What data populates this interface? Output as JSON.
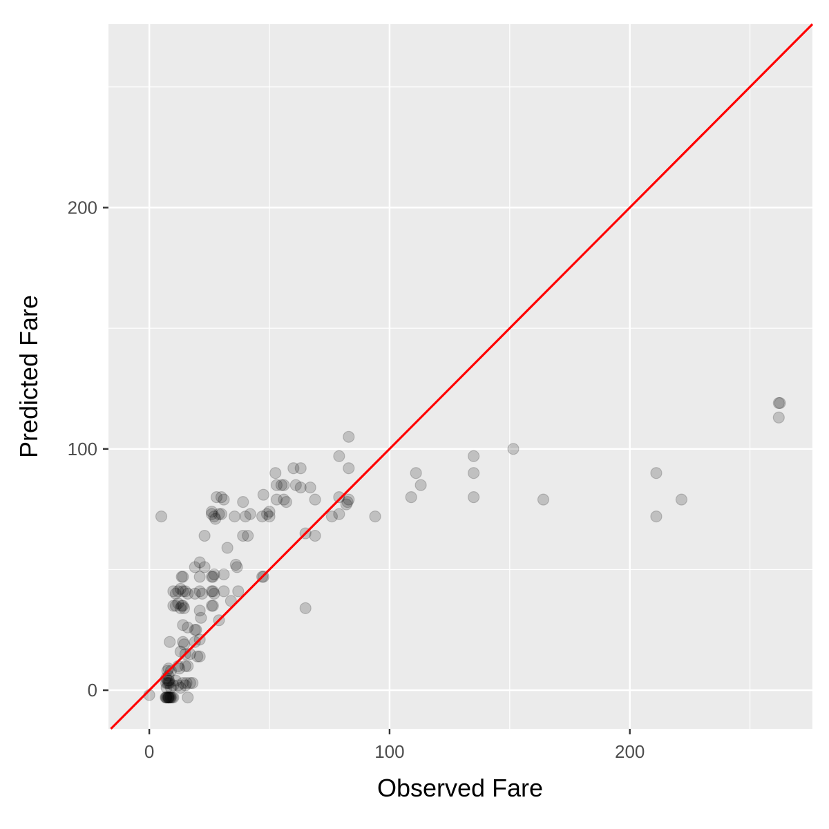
{
  "chart_data": {
    "type": "scatter",
    "title": "",
    "xlabel": "Observed Fare",
    "ylabel": "Predicted Fare",
    "xlim": [
      -17,
      276
    ],
    "ylim": [
      -16,
      276
    ],
    "x_ticks": [
      0,
      100,
      200
    ],
    "y_ticks": [
      0,
      100,
      200
    ],
    "x_minor": [
      50,
      150,
      250
    ],
    "y_minor": [
      50,
      150,
      250
    ],
    "grid": true,
    "colors": {
      "panel": "#ebebeb",
      "grid": "#ffffff",
      "points": "#000000",
      "reference_line": "#ff0000",
      "tick_text": "#4d4d4d"
    },
    "point_alpha": 0.18,
    "reference_line": {
      "slope": 1,
      "intercept": 0
    },
    "points": [
      {
        "x": 0,
        "y": -2
      },
      {
        "x": 5,
        "y": 72
      },
      {
        "x": 7,
        "y": -3
      },
      {
        "x": 7.5,
        "y": -3
      },
      {
        "x": 8,
        "y": -3
      },
      {
        "x": 8,
        "y": -3
      },
      {
        "x": 8.5,
        "y": -3
      },
      {
        "x": 9,
        "y": -3
      },
      {
        "x": 7.8,
        "y": -3
      },
      {
        "x": 8.2,
        "y": -3
      },
      {
        "x": 7.2,
        "y": -3
      },
      {
        "x": 8.8,
        "y": -3
      },
      {
        "x": 9.5,
        "y": -3
      },
      {
        "x": 6.8,
        "y": -3
      },
      {
        "x": 10,
        "y": -3
      },
      {
        "x": 7,
        "y": 3
      },
      {
        "x": 7.5,
        "y": 3
      },
      {
        "x": 8,
        "y": 3
      },
      {
        "x": 8.5,
        "y": 3
      },
      {
        "x": 7.8,
        "y": 4
      },
      {
        "x": 8.2,
        "y": 4
      },
      {
        "x": 7,
        "y": 5
      },
      {
        "x": 8,
        "y": 6
      },
      {
        "x": 7.5,
        "y": 8
      },
      {
        "x": 8,
        "y": 9
      },
      {
        "x": 9,
        "y": 8
      },
      {
        "x": 7.2,
        "y": 1
      },
      {
        "x": 9,
        "y": 1
      },
      {
        "x": 10,
        "y": 2
      },
      {
        "x": 11,
        "y": 4
      },
      {
        "x": 12,
        "y": 2
      },
      {
        "x": 12.5,
        "y": 9
      },
      {
        "x": 13,
        "y": 1
      },
      {
        "x": 14,
        "y": 3
      },
      {
        "x": 15,
        "y": 2
      },
      {
        "x": 15.5,
        "y": 3
      },
      {
        "x": 16,
        "y": -3
      },
      {
        "x": 17,
        "y": 3
      },
      {
        "x": 18,
        "y": 3
      },
      {
        "x": 8.5,
        "y": 20
      },
      {
        "x": 13,
        "y": 16
      },
      {
        "x": 14,
        "y": 20
      },
      {
        "x": 14.5,
        "y": 19
      },
      {
        "x": 15,
        "y": 10
      },
      {
        "x": 16,
        "y": 10
      },
      {
        "x": 15,
        "y": 15
      },
      {
        "x": 17,
        "y": 15
      },
      {
        "x": 16,
        "y": 26
      },
      {
        "x": 14,
        "y": 27
      },
      {
        "x": 12,
        "y": 10
      },
      {
        "x": 19,
        "y": 25
      },
      {
        "x": 19.5,
        "y": 25
      },
      {
        "x": 20,
        "y": 14
      },
      {
        "x": 21,
        "y": 14
      },
      {
        "x": 19,
        "y": 20
      },
      {
        "x": 21,
        "y": 21
      },
      {
        "x": 10,
        "y": 35
      },
      {
        "x": 11,
        "y": 35
      },
      {
        "x": 12,
        "y": 36
      },
      {
        "x": 13,
        "y": 34
      },
      {
        "x": 13.5,
        "y": 35
      },
      {
        "x": 14,
        "y": 35
      },
      {
        "x": 14.5,
        "y": 34
      },
      {
        "x": 10,
        "y": 41
      },
      {
        "x": 11,
        "y": 40
      },
      {
        "x": 12,
        "y": 41
      },
      {
        "x": 13,
        "y": 42
      },
      {
        "x": 14,
        "y": 41
      },
      {
        "x": 15,
        "y": 41
      },
      {
        "x": 16,
        "y": 40
      },
      {
        "x": 13.5,
        "y": 47
      },
      {
        "x": 14,
        "y": 47
      },
      {
        "x": 19,
        "y": 40
      },
      {
        "x": 19,
        "y": 51
      },
      {
        "x": 21,
        "y": 41
      },
      {
        "x": 21,
        "y": 53
      },
      {
        "x": 21,
        "y": 47
      },
      {
        "x": 21,
        "y": 33
      },
      {
        "x": 21.5,
        "y": 30
      },
      {
        "x": 22,
        "y": 40
      },
      {
        "x": 23,
        "y": 51
      },
      {
        "x": 23,
        "y": 64
      },
      {
        "x": 26,
        "y": 73
      },
      {
        "x": 26,
        "y": 74
      },
      {
        "x": 26,
        "y": 47
      },
      {
        "x": 26.5,
        "y": 47
      },
      {
        "x": 27,
        "y": 48
      },
      {
        "x": 26,
        "y": 41
      },
      {
        "x": 26.5,
        "y": 41
      },
      {
        "x": 27,
        "y": 40
      },
      {
        "x": 26,
        "y": 35
      },
      {
        "x": 26.5,
        "y": 35
      },
      {
        "x": 27,
        "y": 72
      },
      {
        "x": 27.5,
        "y": 71
      },
      {
        "x": 28,
        "y": 80
      },
      {
        "x": 29,
        "y": 29
      },
      {
        "x": 29,
        "y": 73
      },
      {
        "x": 30,
        "y": 73
      },
      {
        "x": 30,
        "y": 80
      },
      {
        "x": 31,
        "y": 79
      },
      {
        "x": 31,
        "y": 48
      },
      {
        "x": 31,
        "y": 41
      },
      {
        "x": 32.5,
        "y": 59
      },
      {
        "x": 34,
        "y": 37
      },
      {
        "x": 35.5,
        "y": 72
      },
      {
        "x": 36,
        "y": 52
      },
      {
        "x": 36.5,
        "y": 51
      },
      {
        "x": 37,
        "y": 41
      },
      {
        "x": 39,
        "y": 64
      },
      {
        "x": 39,
        "y": 78
      },
      {
        "x": 40,
        "y": 72
      },
      {
        "x": 41,
        "y": 64
      },
      {
        "x": 42,
        "y": 73
      },
      {
        "x": 47,
        "y": 47
      },
      {
        "x": 47.5,
        "y": 47
      },
      {
        "x": 47,
        "y": 72
      },
      {
        "x": 47.5,
        "y": 81
      },
      {
        "x": 49,
        "y": 73
      },
      {
        "x": 50,
        "y": 74
      },
      {
        "x": 50,
        "y": 72
      },
      {
        "x": 52.5,
        "y": 90
      },
      {
        "x": 53,
        "y": 85
      },
      {
        "x": 53,
        "y": 79
      },
      {
        "x": 55,
        "y": 85
      },
      {
        "x": 56,
        "y": 85
      },
      {
        "x": 56,
        "y": 79
      },
      {
        "x": 57,
        "y": 78
      },
      {
        "x": 60,
        "y": 92
      },
      {
        "x": 61,
        "y": 85
      },
      {
        "x": 63,
        "y": 84
      },
      {
        "x": 63,
        "y": 92
      },
      {
        "x": 65,
        "y": 65
      },
      {
        "x": 65,
        "y": 34
      },
      {
        "x": 67,
        "y": 84
      },
      {
        "x": 69,
        "y": 79
      },
      {
        "x": 69,
        "y": 64
      },
      {
        "x": 76,
        "y": 72
      },
      {
        "x": 79,
        "y": 97
      },
      {
        "x": 79,
        "y": 80
      },
      {
        "x": 79,
        "y": 73
      },
      {
        "x": 82,
        "y": 77
      },
      {
        "x": 82.5,
        "y": 78
      },
      {
        "x": 83,
        "y": 105
      },
      {
        "x": 83,
        "y": 92
      },
      {
        "x": 83,
        "y": 79
      },
      {
        "x": 94,
        "y": 72
      },
      {
        "x": 109,
        "y": 80
      },
      {
        "x": 111,
        "y": 90
      },
      {
        "x": 113,
        "y": 85
      },
      {
        "x": 135,
        "y": 97
      },
      {
        "x": 135,
        "y": 90
      },
      {
        "x": 135,
        "y": 80
      },
      {
        "x": 151.5,
        "y": 100
      },
      {
        "x": 164,
        "y": 79
      },
      {
        "x": 211,
        "y": 90
      },
      {
        "x": 211,
        "y": 72
      },
      {
        "x": 221.5,
        "y": 79
      },
      {
        "x": 262,
        "y": 119
      },
      {
        "x": 262.5,
        "y": 119
      },
      {
        "x": 262,
        "y": 113
      }
    ]
  }
}
